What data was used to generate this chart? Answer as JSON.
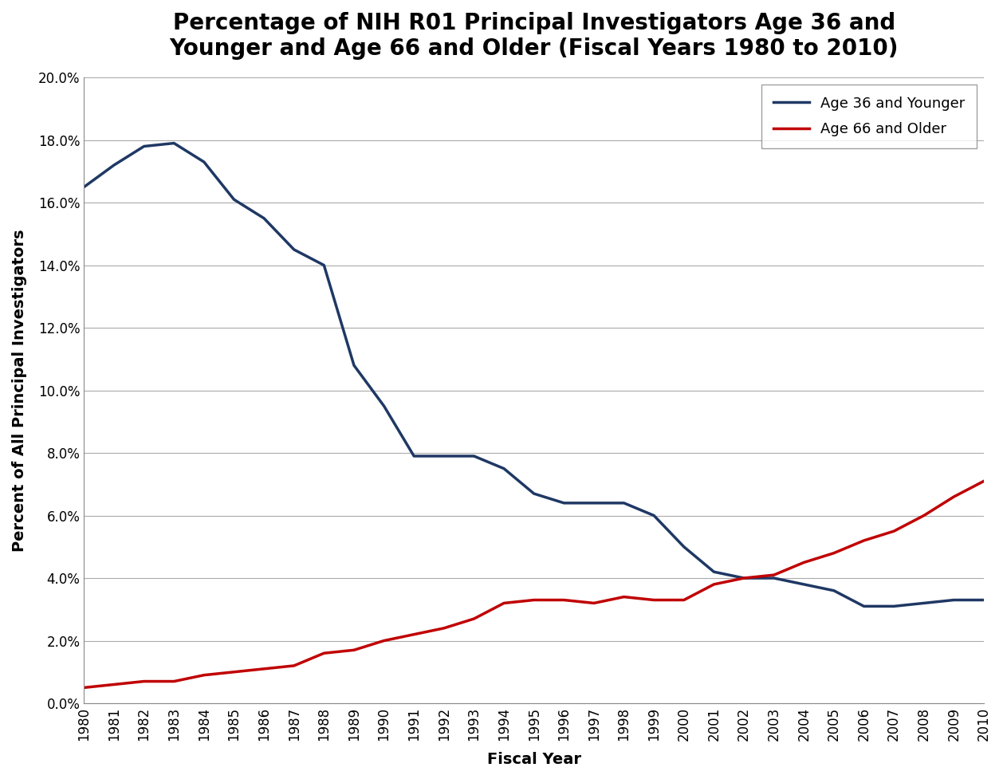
{
  "title": "Percentage of NIH R01 Principal Investigators Age 36 and\nYounger and Age 66 and Older (Fiscal Years 1980 to 2010)",
  "xlabel": "Fiscal Year",
  "ylabel": "Percent of All Principal Investigators",
  "years": [
    1980,
    1981,
    1982,
    1983,
    1984,
    1985,
    1986,
    1987,
    1988,
    1989,
    1990,
    1991,
    1992,
    1993,
    1994,
    1995,
    1996,
    1997,
    1998,
    1999,
    2000,
    2001,
    2002,
    2003,
    2004,
    2005,
    2006,
    2007,
    2008,
    2009,
    2010
  ],
  "young": [
    0.165,
    0.172,
    0.178,
    0.179,
    0.173,
    0.161,
    0.155,
    0.145,
    0.14,
    0.108,
    0.095,
    0.079,
    0.079,
    0.079,
    0.075,
    0.067,
    0.064,
    0.064,
    0.064,
    0.06,
    0.05,
    0.042,
    0.04,
    0.04,
    0.038,
    0.036,
    0.031,
    0.031,
    0.032,
    0.033,
    0.033
  ],
  "older": [
    0.005,
    0.006,
    0.007,
    0.007,
    0.009,
    0.01,
    0.011,
    0.012,
    0.016,
    0.017,
    0.02,
    0.022,
    0.024,
    0.027,
    0.032,
    0.033,
    0.033,
    0.032,
    0.034,
    0.033,
    0.033,
    0.038,
    0.04,
    0.041,
    0.045,
    0.048,
    0.052,
    0.055,
    0.06,
    0.066,
    0.071
  ],
  "young_color": "#1F3864",
  "older_color": "#C00000",
  "young_label": "Age 36 and Younger",
  "older_label": "Age 66 and Older",
  "ylim": [
    0.0,
    0.2
  ],
  "ytick_step": 0.02,
  "background_color": "#FFFFFF",
  "plot_bg_color": "#FFFFFF",
  "grid_color": "#AAAAAA",
  "title_fontsize": 20,
  "axis_label_fontsize": 14,
  "tick_fontsize": 12,
  "legend_fontsize": 13,
  "line_width": 2.5
}
